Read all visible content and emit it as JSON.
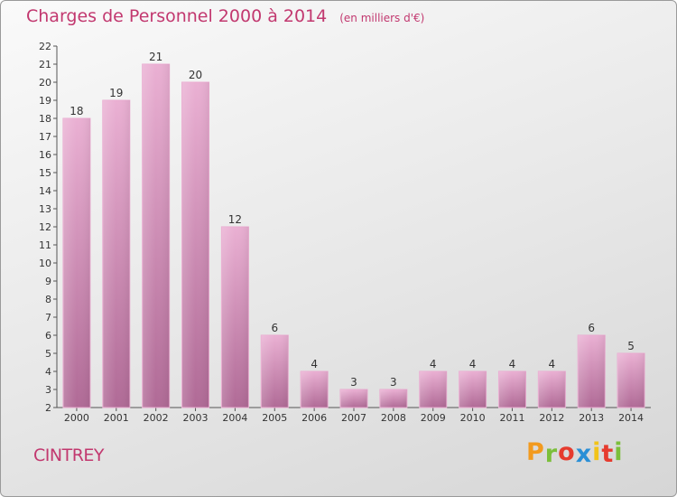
{
  "chart_data": {
    "type": "bar",
    "title": "Charges de Personnel 2000 à 2014",
    "subtitle": "(en milliers d'€)",
    "categories": [
      "2000",
      "2001",
      "2002",
      "2003",
      "2004",
      "2005",
      "2006",
      "2007",
      "2008",
      "2009",
      "2010",
      "2011",
      "2012",
      "2013",
      "2014"
    ],
    "values": [
      18,
      19,
      21,
      20,
      12,
      6,
      4,
      3,
      3,
      4,
      4,
      4,
      4,
      6,
      5
    ],
    "ylim": [
      2,
      22
    ],
    "yticks": [
      2,
      3,
      4,
      5,
      6,
      7,
      8,
      9,
      10,
      11,
      12,
      13,
      14,
      15,
      16,
      17,
      18,
      19,
      20,
      21,
      22
    ],
    "grid": false,
    "bar_color": "#d98bb8"
  },
  "location": "CINTREY",
  "brand": {
    "text": "Proxiti",
    "letters": [
      "P",
      "r",
      "o",
      "x",
      "i",
      "t",
      "i"
    ],
    "colors": [
      "#f29a1e",
      "#7bbf3a",
      "#e63b2e",
      "#2a8fd6",
      "#f2c318",
      "#e63b2e",
      "#7bbf3a"
    ]
  }
}
